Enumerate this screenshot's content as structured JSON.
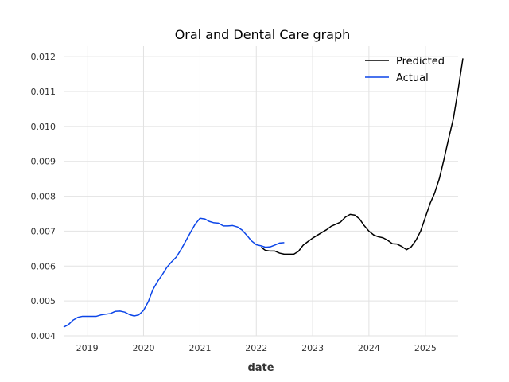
{
  "chart_data": {
    "type": "line",
    "title": "Oral and Dental Care graph",
    "xlabel": "date",
    "ylabel": "",
    "xlim": [
      "2018-08-01",
      "2025-08-01"
    ],
    "ylim": [
      0.004,
      0.0123
    ],
    "x_ticks": [
      "2019",
      "2020",
      "2021",
      "2022",
      "2023",
      "2024",
      "2025"
    ],
    "y_ticks": [
      "0.004",
      "0.005",
      "0.006",
      "0.007",
      "0.008",
      "0.009",
      "0.010",
      "0.011",
      "0.012"
    ],
    "grid": true,
    "legend_position": "top-right",
    "series": [
      {
        "name": "Predicted",
        "color": "#000000",
        "points": [
          [
            "2022-02-01",
            0.00654
          ],
          [
            "2022-03-01",
            0.00645
          ],
          [
            "2022-04-01",
            0.00643
          ],
          [
            "2022-05-01",
            0.00643
          ],
          [
            "2022-06-01",
            0.00637
          ],
          [
            "2022-07-01",
            0.00634
          ],
          [
            "2022-09-01",
            0.00634
          ],
          [
            "2022-10-01",
            0.00642
          ],
          [
            "2022-11-01",
            0.0066
          ],
          [
            "2022-12-01",
            0.0067
          ],
          [
            "2023-01-01",
            0.0068
          ],
          [
            "2023-03-01",
            0.00696
          ],
          [
            "2023-04-01",
            0.00704
          ],
          [
            "2023-05-01",
            0.00714
          ],
          [
            "2023-06-01",
            0.0072
          ],
          [
            "2023-07-01",
            0.00726
          ],
          [
            "2023-08-01",
            0.0074
          ],
          [
            "2023-09-01",
            0.00748
          ],
          [
            "2023-10-01",
            0.00746
          ],
          [
            "2023-11-01",
            0.00735
          ],
          [
            "2023-12-01",
            0.00716
          ],
          [
            "2024-01-01",
            0.007
          ],
          [
            "2024-02-01",
            0.00689
          ],
          [
            "2024-03-01",
            0.00684
          ],
          [
            "2024-04-01",
            0.00681
          ],
          [
            "2024-05-01",
            0.00674
          ],
          [
            "2024-06-01",
            0.00664
          ],
          [
            "2024-07-01",
            0.00663
          ],
          [
            "2024-08-01",
            0.00656
          ],
          [
            "2024-09-01",
            0.00647
          ],
          [
            "2024-10-01",
            0.00655
          ],
          [
            "2024-11-01",
            0.00674
          ],
          [
            "2024-12-01",
            0.007
          ],
          [
            "2025-01-01",
            0.0074
          ],
          [
            "2025-02-01",
            0.0078
          ],
          [
            "2025-03-01",
            0.00808
          ],
          [
            "2025-04-01",
            0.0085
          ],
          [
            "2025-05-01",
            0.00905
          ],
          [
            "2025-06-01",
            0.00966
          ],
          [
            "2025-07-01",
            0.01022
          ],
          [
            "2025-08-01",
            0.01105
          ],
          [
            "2025-09-01",
            0.01195
          ]
        ]
      },
      {
        "name": "Actual",
        "color": "#0b45e8",
        "points": [
          [
            "2018-08-01",
            0.00425
          ],
          [
            "2018-09-01",
            0.00432
          ],
          [
            "2018-10-01",
            0.00445
          ],
          [
            "2018-11-01",
            0.00453
          ],
          [
            "2018-12-01",
            0.00456
          ],
          [
            "2019-01-01",
            0.00456
          ],
          [
            "2019-02-01",
            0.00456
          ],
          [
            "2019-03-01",
            0.00456
          ],
          [
            "2019-04-01",
            0.0046
          ],
          [
            "2019-05-01",
            0.00462
          ],
          [
            "2019-06-01",
            0.00464
          ],
          [
            "2019-07-01",
            0.0047
          ],
          [
            "2019-08-01",
            0.00471
          ],
          [
            "2019-09-01",
            0.00468
          ],
          [
            "2019-10-01",
            0.00461
          ],
          [
            "2019-11-01",
            0.00457
          ],
          [
            "2019-12-01",
            0.0046
          ],
          [
            "2020-01-01",
            0.00473
          ],
          [
            "2020-02-01",
            0.00498
          ],
          [
            "2020-03-01",
            0.00532
          ],
          [
            "2020-04-01",
            0.00556
          ],
          [
            "2020-05-01",
            0.00575
          ],
          [
            "2020-06-01",
            0.00597
          ],
          [
            "2020-07-01",
            0.00612
          ],
          [
            "2020-08-01",
            0.00626
          ],
          [
            "2020-09-01",
            0.00648
          ],
          [
            "2020-10-01",
            0.00672
          ],
          [
            "2020-11-01",
            0.00697
          ],
          [
            "2020-12-01",
            0.0072
          ],
          [
            "2021-01-01",
            0.00737
          ],
          [
            "2021-02-01",
            0.00735
          ],
          [
            "2021-03-01",
            0.00728
          ],
          [
            "2021-04-01",
            0.00724
          ],
          [
            "2021-05-01",
            0.00723
          ],
          [
            "2021-06-01",
            0.00715
          ],
          [
            "2021-07-01",
            0.00715
          ],
          [
            "2021-08-01",
            0.00716
          ],
          [
            "2021-09-01",
            0.00712
          ],
          [
            "2021-10-01",
            0.00703
          ],
          [
            "2021-11-01",
            0.00688
          ],
          [
            "2021-12-01",
            0.00672
          ],
          [
            "2022-01-01",
            0.00661
          ],
          [
            "2022-02-01",
            0.00658
          ],
          [
            "2022-03-01",
            0.00654
          ],
          [
            "2022-04-01",
            0.00655
          ],
          [
            "2022-05-01",
            0.0066
          ],
          [
            "2022-06-01",
            0.00666
          ],
          [
            "2022-07-01",
            0.00667
          ]
        ]
      }
    ]
  }
}
